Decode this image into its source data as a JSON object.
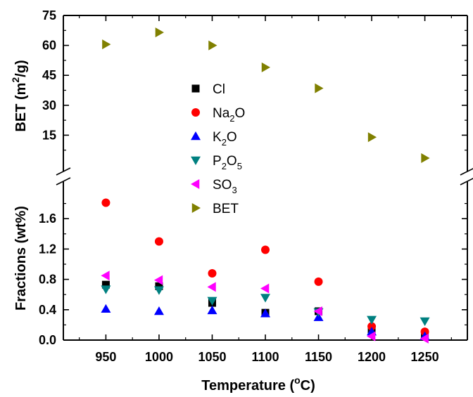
{
  "chart_data": {
    "type": "scatter",
    "xlabel": "Temperature (°C)",
    "x_ticks": [
      950,
      1000,
      1050,
      1100,
      1150,
      1200,
      1250
    ],
    "xlim": [
      910,
      1290
    ],
    "top_panel": {
      "ylabel": "BET (m²/g)",
      "ylim": [
        0,
        75
      ],
      "y_ticks": [
        15,
        30,
        45,
        60,
        75
      ]
    },
    "bottom_panel": {
      "ylabel": "Fractions (wt%)",
      "ylim": [
        0,
        2.0
      ],
      "y_ticks": [
        0.0,
        0.4,
        0.8,
        1.2,
        1.6
      ]
    },
    "legend": {
      "position": "center"
    },
    "series": [
      {
        "name": "Cl",
        "marker": "square",
        "color": "#000000",
        "panel": "bottom",
        "x": [
          950,
          1000,
          1050,
          1100,
          1150,
          1200,
          1250
        ],
        "y": [
          0.73,
          0.71,
          0.49,
          0.36,
          0.38,
          0.13,
          0.05
        ]
      },
      {
        "name": "Na2O",
        "marker": "circle",
        "color": "#ff0000",
        "panel": "bottom",
        "x": [
          950,
          1000,
          1050,
          1100,
          1150,
          1200,
          1250
        ],
        "y": [
          1.81,
          1.3,
          0.88,
          1.19,
          0.77,
          0.18,
          0.11
        ]
      },
      {
        "name": "K2O",
        "marker": "triangle-up",
        "color": "#0000ff",
        "panel": "bottom",
        "x": [
          950,
          1000,
          1050,
          1100,
          1150,
          1200,
          1250
        ],
        "y": [
          0.41,
          0.38,
          0.39,
          0.35,
          0.3,
          0.11,
          0.05
        ]
      },
      {
        "name": "P2O5",
        "marker": "triangle-down",
        "color": "#008080",
        "panel": "bottom",
        "x": [
          950,
          1000,
          1050,
          1100,
          1150,
          1200,
          1250
        ],
        "y": [
          0.67,
          0.66,
          0.52,
          0.56,
          0.37,
          0.27,
          0.25
        ]
      },
      {
        "name": "SO3",
        "marker": "triangle-left",
        "color": "#ff00ff",
        "panel": "bottom",
        "x": [
          950,
          1000,
          1050,
          1100,
          1150,
          1200,
          1250
        ],
        "y": [
          0.85,
          0.79,
          0.7,
          0.68,
          0.38,
          0.05,
          0.02
        ]
      },
      {
        "name": "BET",
        "marker": "triangle-right",
        "color": "#808000",
        "panel": "top",
        "x": [
          950,
          1000,
          1050,
          1100,
          1150,
          1200,
          1250
        ],
        "y": [
          60.5,
          66.5,
          60.0,
          49.0,
          38.5,
          14.0,
          3.5
        ]
      }
    ]
  }
}
